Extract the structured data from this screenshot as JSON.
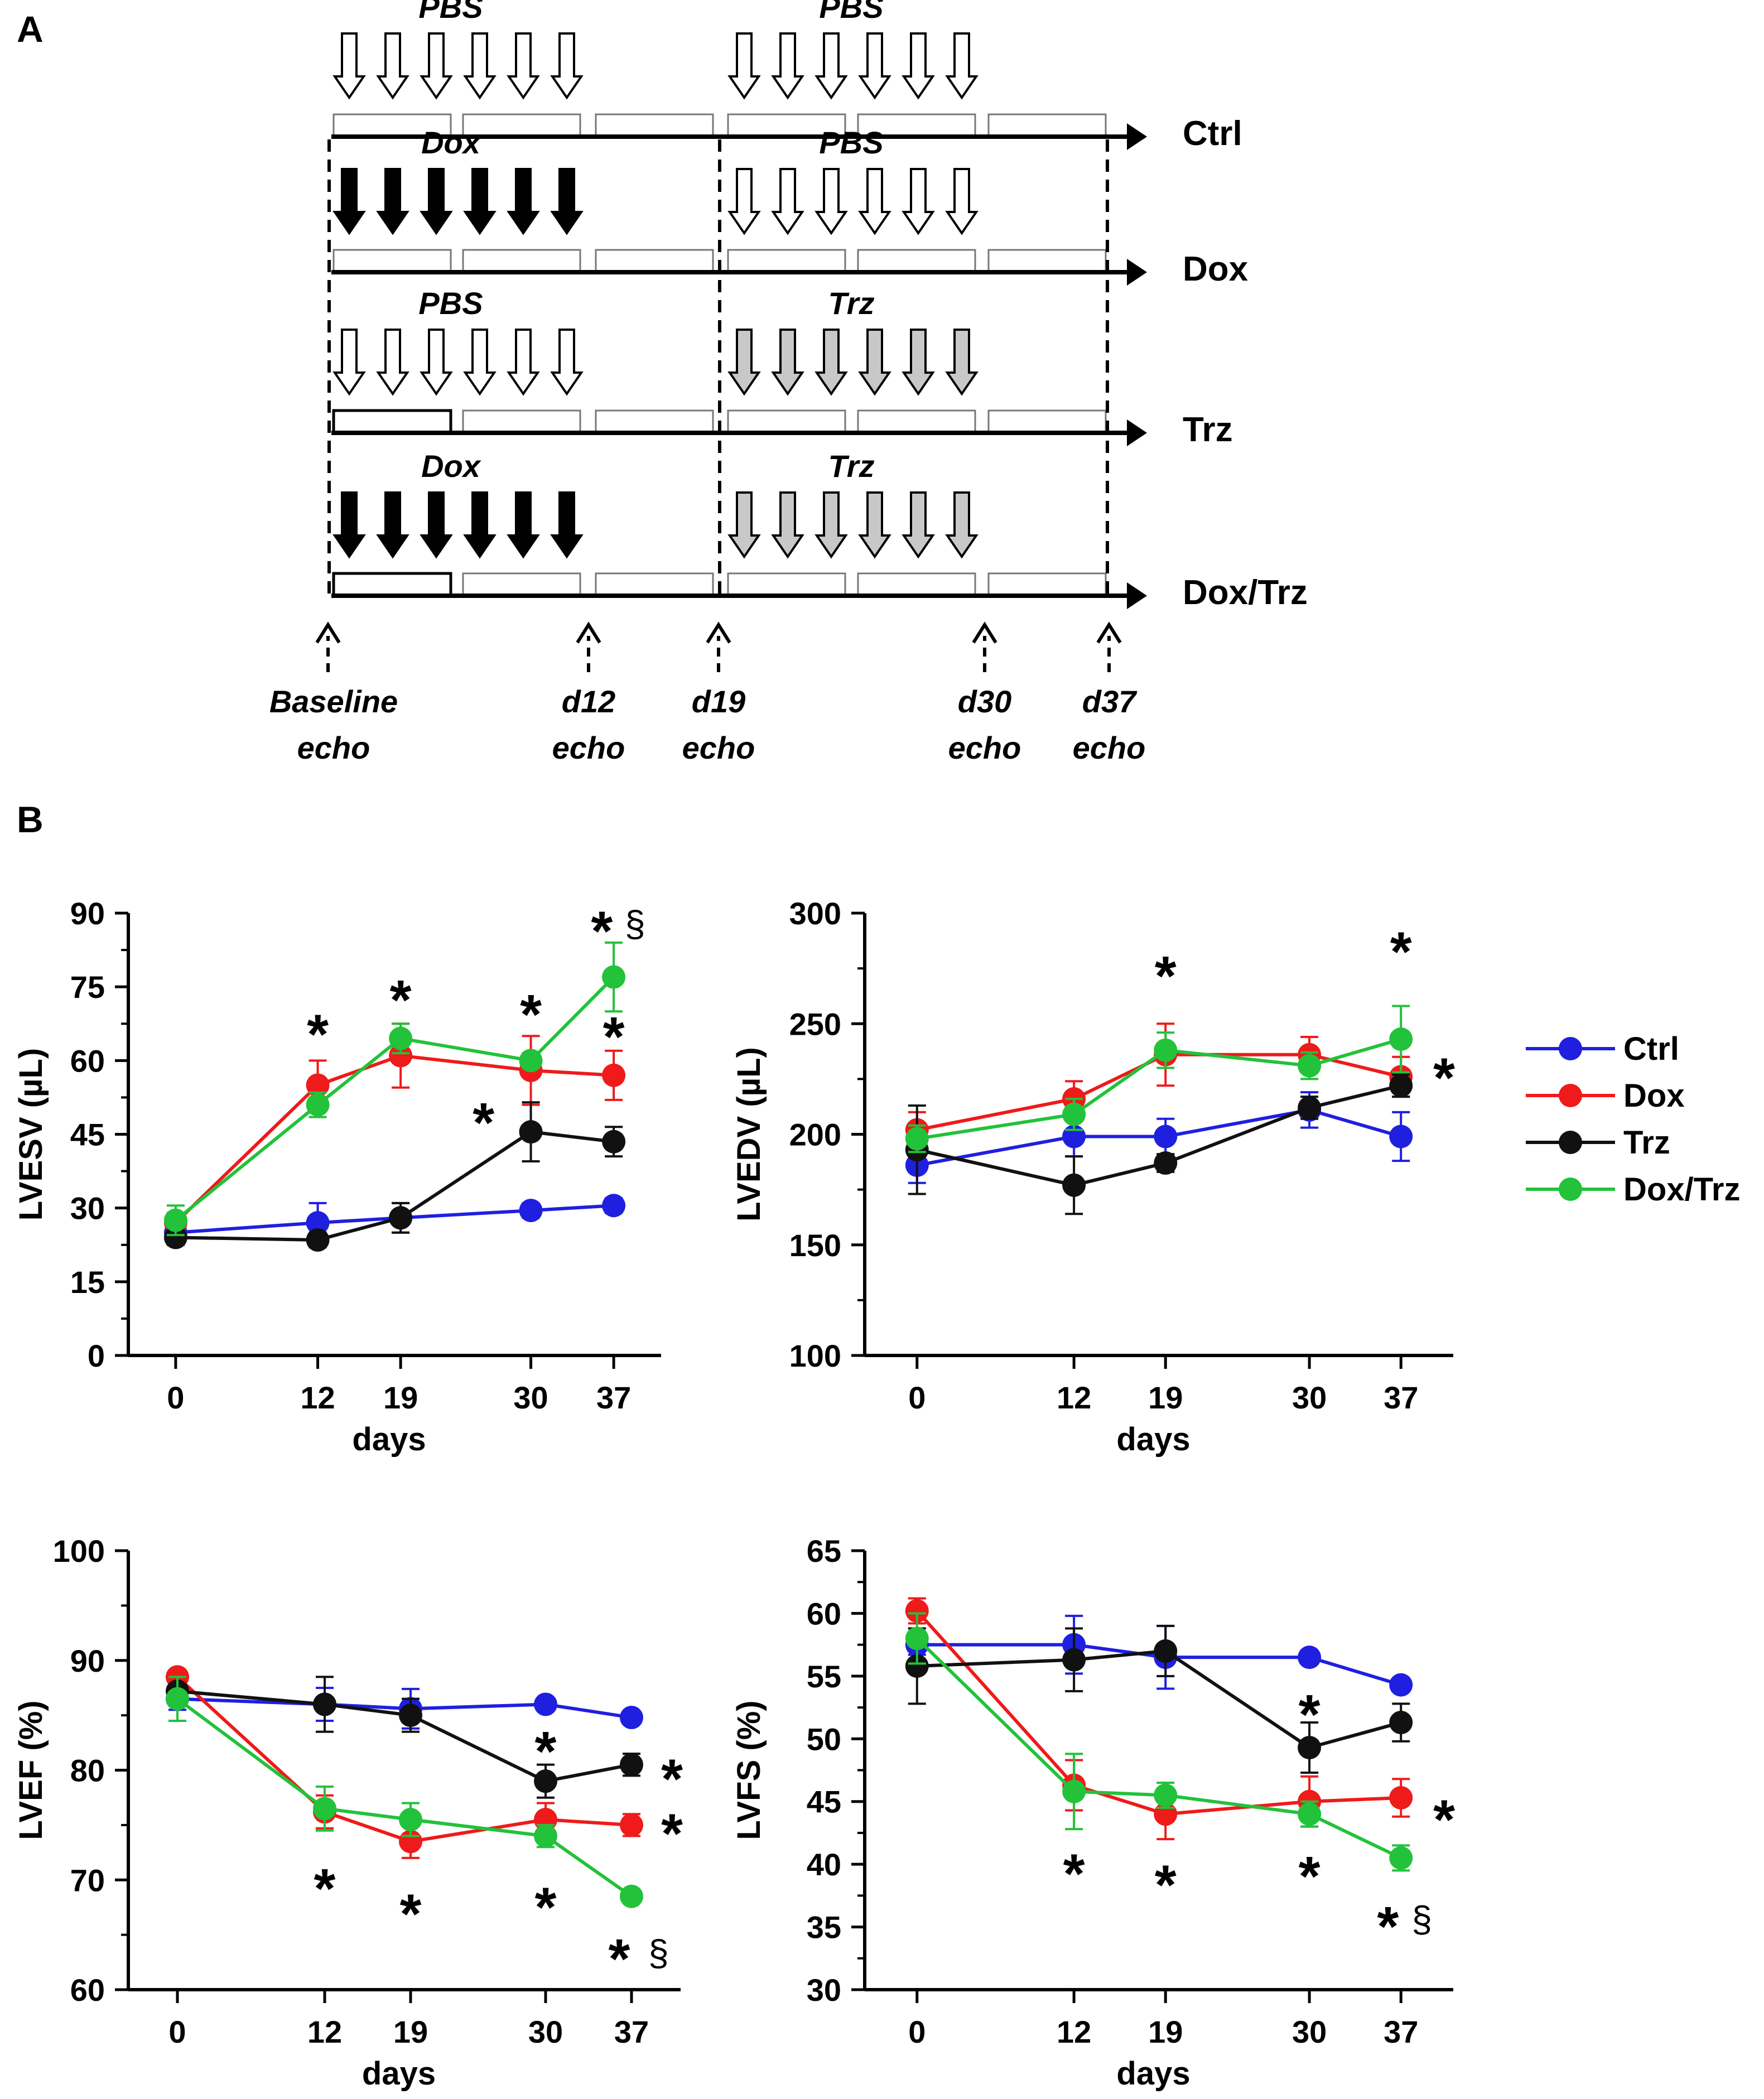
{
  "panel_a": {
    "letter": "A",
    "rows": [
      {
        "name": "Ctrl",
        "phase1": {
          "label": "PBS",
          "kind": "open"
        },
        "phase2": {
          "label": "PBS",
          "kind": "open"
        }
      },
      {
        "name": "Dox",
        "phase1": {
          "label": "Dox",
          "kind": "filled"
        },
        "phase2": {
          "label": "PBS",
          "kind": "open"
        }
      },
      {
        "name": "Trz",
        "phase1": {
          "label": "PBS",
          "kind": "open"
        },
        "phase2": {
          "label": "Trz",
          "kind": "gray"
        }
      },
      {
        "name": "Dox/Trz",
        "phase1": {
          "label": "Dox",
          "kind": "filled"
        },
        "phase2": {
          "label": "Trz",
          "kind": "gray"
        }
      }
    ],
    "timepoints": [
      {
        "line1": "Baseline",
        "line2": "echo"
      },
      {
        "line1": "d12",
        "line2": "echo"
      },
      {
        "line1": "d19",
        "line2": "echo"
      },
      {
        "line1": "d30",
        "line2": "echo"
      },
      {
        "line1": "d37",
        "line2": "echo"
      }
    ]
  },
  "panel_b": {
    "letter": "B",
    "legend": [
      {
        "name": "Ctrl",
        "color": "#1f1fe0"
      },
      {
        "name": "Dox",
        "color": "#ef1a1a"
      },
      {
        "name": "Trz",
        "color": "#111111"
      },
      {
        "name": "Dox/Trz",
        "color": "#22c23a"
      }
    ]
  },
  "chart_data": [
    {
      "type": "line",
      "ylabel": "LVESV (µL)",
      "xlabel": "days",
      "x": [
        0,
        12,
        19,
        30,
        37
      ],
      "xlim": [
        -4,
        41
      ],
      "ylim": [
        0,
        90
      ],
      "yticks": [
        0,
        15,
        30,
        45,
        60,
        75,
        90
      ],
      "series": [
        {
          "name": "Ctrl",
          "values": [
            25,
            27,
            28,
            29.5,
            30.5
          ],
          "err": [
            1.5,
            4,
            3,
            1.5,
            1.5
          ]
        },
        {
          "name": "Dox",
          "values": [
            27,
            55,
            61,
            58,
            57
          ],
          "err": [
            2,
            5,
            6.5,
            7,
            5
          ]
        },
        {
          "name": "Trz",
          "values": [
            24,
            23.5,
            28,
            45.5,
            43.5
          ],
          "err": [
            1.5,
            1.5,
            3,
            6,
            3
          ]
        },
        {
          "name": "Dox/Trz",
          "values": [
            27.5,
            51,
            64.5,
            60,
            77
          ],
          "err": [
            3,
            2.5,
            3,
            1.5,
            7
          ]
        }
      ],
      "annotations": [
        {
          "text": "*",
          "x": 12,
          "y": 66
        },
        {
          "text": "*",
          "x": 19,
          "y": 73
        },
        {
          "text": "*",
          "x": 30,
          "y": 70
        },
        {
          "text": "*",
          "x": 37,
          "y": 65.5
        },
        {
          "text": "*",
          "x": 26,
          "y": 48
        },
        {
          "text": "*",
          "x": 36,
          "y": 87
        },
        {
          "text": "§",
          "x": 38.8,
          "y": 87.5
        }
      ]
    },
    {
      "type": "line",
      "ylabel": "LVEDV (µL)",
      "xlabel": "days",
      "x": [
        0,
        12,
        19,
        30,
        37
      ],
      "xlim": [
        -4,
        41
      ],
      "ylim": [
        100,
        300
      ],
      "yticks": [
        100,
        150,
        200,
        250,
        300
      ],
      "series": [
        {
          "name": "Ctrl",
          "values": [
            186,
            199,
            199,
            211,
            199
          ],
          "err": [
            8,
            9,
            8,
            8,
            11
          ]
        },
        {
          "name": "Dox",
          "values": [
            202,
            216,
            236,
            236,
            226
          ],
          "err": [
            8,
            8,
            14,
            8,
            9
          ]
        },
        {
          "name": "Trz",
          "values": [
            193,
            177,
            187,
            212,
            222
          ],
          "err": [
            20,
            13,
            4,
            5,
            5
          ]
        },
        {
          "name": "Dox/Trz",
          "values": [
            198,
            209,
            238,
            231,
            243
          ],
          "err": [
            6,
            7,
            8,
            6,
            15
          ]
        }
      ],
      "annotations": [
        {
          "text": "*",
          "x": 19,
          "y": 273
        },
        {
          "text": "*",
          "x": 37,
          "y": 284
        },
        {
          "text": "*",
          "x": 40.3,
          "y": 227
        }
      ]
    },
    {
      "type": "line",
      "ylabel": "LVEF (%)",
      "xlabel": "days",
      "x": [
        0,
        12,
        19,
        30,
        37
      ],
      "xlim": [
        -4,
        41
      ],
      "ylim": [
        60,
        100
      ],
      "yticks": [
        60,
        70,
        80,
        90,
        100
      ],
      "series": [
        {
          "name": "Ctrl",
          "values": [
            86.5,
            86,
            85.6,
            86,
            84.8
          ],
          "err": [
            1,
            1.5,
            1.8,
            0.5,
            0.5
          ]
        },
        {
          "name": "Dox",
          "values": [
            88.5,
            76.2,
            73.5,
            75.5,
            75
          ],
          "err": [
            0.5,
            1.5,
            1.5,
            1.5,
            1
          ]
        },
        {
          "name": "Trz",
          "values": [
            87.2,
            86,
            85,
            79,
            80.5
          ],
          "err": [
            0.5,
            2.5,
            1.5,
            1.5,
            1
          ]
        },
        {
          "name": "Dox/Trz",
          "values": [
            86.5,
            76.5,
            75.5,
            74,
            68.5
          ],
          "err": [
            2,
            2,
            1.5,
            1,
            0.5
          ]
        }
      ],
      "annotations": [
        {
          "text": "*",
          "x": 12,
          "y": 69.5
        },
        {
          "text": "*",
          "x": 19,
          "y": 67.2
        },
        {
          "text": "*",
          "x": 30,
          "y": 67.8
        },
        {
          "text": "*",
          "x": 30,
          "y": 82
        },
        {
          "text": "*",
          "x": 40.3,
          "y": 79.5
        },
        {
          "text": "*",
          "x": 40.3,
          "y": 74.5
        },
        {
          "text": "*",
          "x": 36,
          "y": 63.1
        },
        {
          "text": "§",
          "x": 39.2,
          "y": 63.2
        }
      ]
    },
    {
      "type": "line",
      "ylabel": "LVFS (%)",
      "xlabel": "days",
      "x": [
        0,
        12,
        19,
        30,
        37
      ],
      "xlim": [
        -4,
        41
      ],
      "ylim": [
        30,
        65
      ],
      "yticks": [
        30,
        35,
        40,
        45,
        50,
        55,
        60,
        65
      ],
      "series": [
        {
          "name": "Ctrl",
          "values": [
            57.5,
            57.5,
            56.5,
            56.5,
            54.3
          ],
          "err": [
            0.8,
            2.3,
            2.5,
            0.5,
            0.5
          ]
        },
        {
          "name": "Dox",
          "values": [
            60.2,
            46.3,
            44,
            45,
            45.3
          ],
          "err": [
            1,
            2,
            2,
            2,
            1.5
          ]
        },
        {
          "name": "Trz",
          "values": [
            55.8,
            56.3,
            57,
            49.3,
            51.3
          ],
          "err": [
            3,
            2.5,
            2,
            2,
            1.5
          ]
        },
        {
          "name": "Dox/Trz",
          "values": [
            58,
            45.8,
            45.5,
            44,
            40.5
          ],
          "err": [
            2,
            3,
            1,
            1,
            1
          ]
        }
      ],
      "annotations": [
        {
          "text": "*",
          "x": 12,
          "y": 39.5
        },
        {
          "text": "*",
          "x": 19,
          "y": 38.6
        },
        {
          "text": "*",
          "x": 30,
          "y": 39.3
        },
        {
          "text": "*",
          "x": 30,
          "y": 52.2
        },
        {
          "text": "*",
          "x": 40.3,
          "y": 43.8
        },
        {
          "text": "*",
          "x": 36,
          "y": 35.3
        },
        {
          "text": "§",
          "x": 38.6,
          "y": 35.5
        }
      ]
    }
  ]
}
